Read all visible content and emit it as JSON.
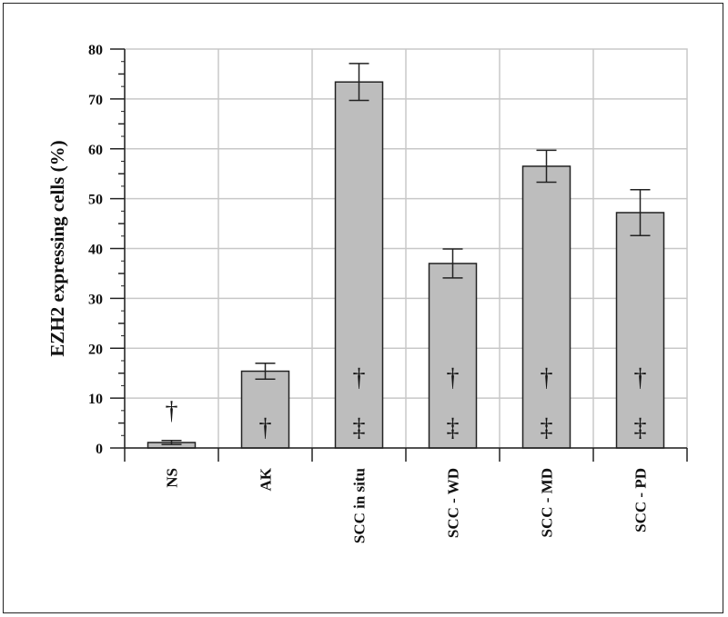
{
  "chart_data": {
    "type": "bar",
    "title": "",
    "xlabel": "",
    "ylabel": "EZH2 expressing cells (%)",
    "ylim": [
      0,
      80
    ],
    "yticks": [
      0,
      10,
      20,
      30,
      40,
      50,
      60,
      70,
      80
    ],
    "grid": true,
    "bar_color": "#bdbdbd",
    "categories": [
      "NS",
      "AK",
      "SCC in situ",
      "SCC - WD",
      "SCC - MD",
      "SCC - PD"
    ],
    "values": [
      1.1,
      15.4,
      73.4,
      37.0,
      56.5,
      47.2
    ],
    "errors": [
      0.4,
      1.6,
      3.7,
      2.9,
      3.2,
      4.6
    ],
    "annotations": [
      [
        "†"
      ],
      [
        "†"
      ],
      [
        "†",
        "‡"
      ],
      [
        "†",
        "‡"
      ],
      [
        "†",
        "‡"
      ],
      [
        "†",
        "‡"
      ]
    ]
  }
}
